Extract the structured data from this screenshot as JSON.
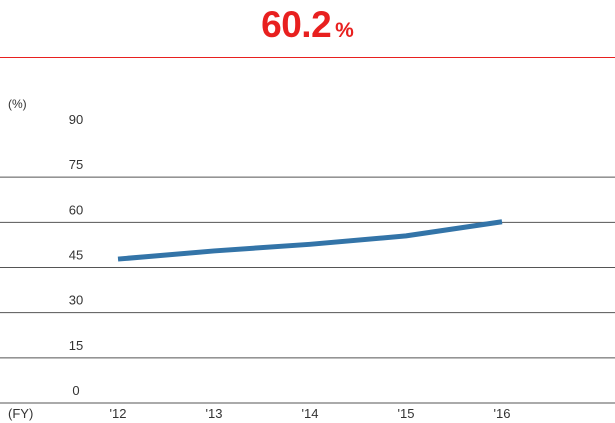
{
  "headline": {
    "value": "60.2",
    "unit": "%"
  },
  "chart_data": {
    "type": "line",
    "y_unit_label": "(%)",
    "x_unit_label": "(FY)",
    "categories": [
      "'12",
      "'13",
      "'14",
      "'15",
      "'16"
    ],
    "series": [
      {
        "values": [
          47.8,
          50.5,
          52.7,
          55.5,
          60.2
        ]
      }
    ],
    "ylim": [
      0,
      90
    ],
    "yticks": [
      0,
      15,
      30,
      45,
      60,
      75,
      90
    ],
    "grid": true,
    "line_color": "#3374a8",
    "accent_color": "#e8201f"
  }
}
